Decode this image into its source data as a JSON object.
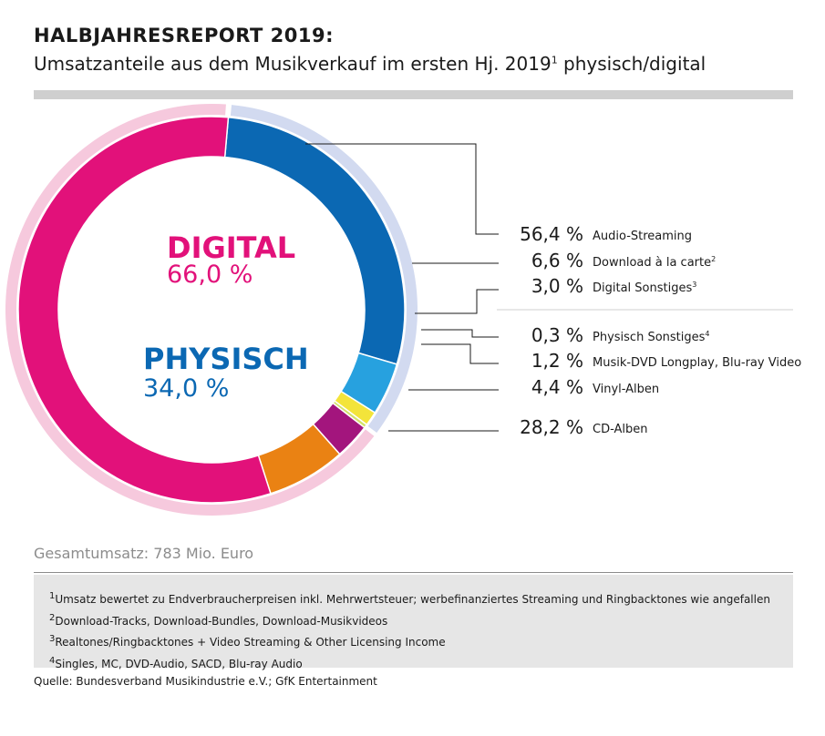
{
  "header": {
    "title": "HALBJAHRESREPORT 2019:",
    "subtitle": "Umsatzanteile aus dem Musikverkauf im ersten Hj. 2019",
    "subtitle_sup": "1",
    "subtitle_tail": " physisch/digital"
  },
  "chart_data": {
    "type": "pie",
    "style": "donut",
    "groups": [
      {
        "name": "DIGITAL",
        "value_label": "66,0 %",
        "value": 66.0,
        "color": "#e2117a",
        "ring_color": "#f6c9dd"
      },
      {
        "name": "PHYSISCH",
        "value_label": "34,0 %",
        "value": 34.0,
        "color": "#0b68b3",
        "ring_color": "#d2daf0"
      }
    ],
    "slices": [
      {
        "label": "Audio-Streaming",
        "value": 56.4,
        "value_label": "56,4 %",
        "sup": "",
        "group": "DIGITAL",
        "color": "#e2117a"
      },
      {
        "label": "Download à la carte",
        "value": 6.6,
        "value_label": "6,6 %",
        "sup": "2",
        "group": "DIGITAL",
        "color": "#ea8213"
      },
      {
        "label": "Digital Sonstiges",
        "value": 3.0,
        "value_label": "3,0 %",
        "sup": "3",
        "group": "DIGITAL",
        "color": "#a3157d"
      },
      {
        "label": "Physisch Sonstiges",
        "value": 0.3,
        "value_label": "0,3 %",
        "sup": "4",
        "group": "PHYSISCH",
        "color": "#d2e26a"
      },
      {
        "label": "Musik-DVD Longplay, Blu-ray Video",
        "value": 1.2,
        "value_label": "1,2 %",
        "sup": "",
        "group": "PHYSISCH",
        "color": "#f3e43a"
      },
      {
        "label": "Vinyl-Alben",
        "value": 4.4,
        "value_label": "4,4 %",
        "sup": "",
        "group": "PHYSISCH",
        "color": "#27a1df"
      },
      {
        "label": "CD-Alben",
        "value": 28.2,
        "value_label": "28,2 %",
        "sup": "",
        "group": "PHYSISCH",
        "color": "#0b68b3"
      }
    ],
    "legend_placement": "right"
  },
  "total": "Gesamtumsatz: 783 Mio. Euro",
  "footnotes": [
    {
      "sup": "1",
      "text": "Umsatz bewertet zu Endverbraucherpreisen inkl. Mehrwertsteuer; werbefinanziertes Streaming und Ringbacktones wie angefallen"
    },
    {
      "sup": "2",
      "text": "Download-Tracks, Download-Bundles, Download-Musikvideos"
    },
    {
      "sup": "3",
      "text": "Realtones/Ringbacktones + Video Streaming & Other Licensing Income"
    },
    {
      "sup": "4",
      "text": "Singles, MC, DVD-Audio, SACD, Blu-ray Audio"
    }
  ],
  "source": "Quelle: Bundesverband Musikindustrie e.V.; GfK Entertainment",
  "colors": {
    "separator": "#cfcfcf",
    "notes_background": "#e6e6e6",
    "total_text": "#8c8c8c",
    "leader_lines": "#1a1a1a"
  }
}
